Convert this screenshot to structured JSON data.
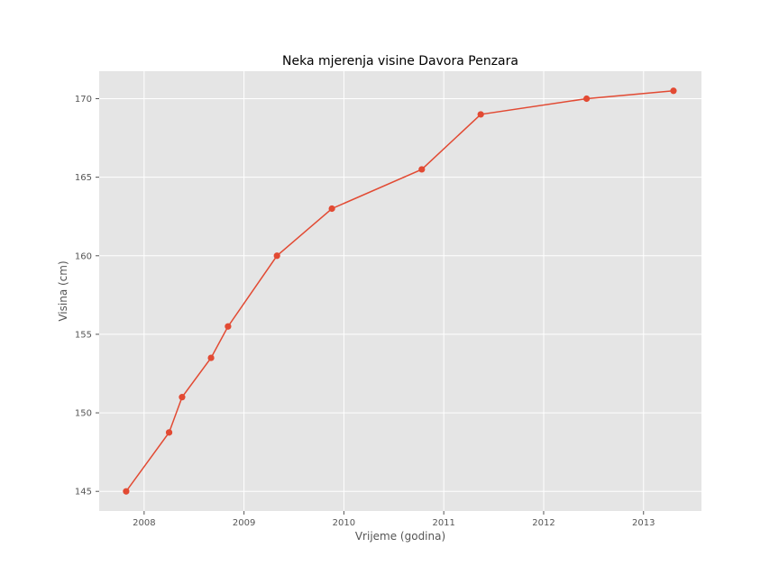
{
  "chart_data": {
    "type": "line",
    "title": "Neka mjerenja visine Davora Penzara",
    "xlabel": "Vrijeme (godina)",
    "ylabel": "Visina (cm)",
    "xlim": [
      2007.55,
      2013.58
    ],
    "ylim": [
      143.75,
      171.75
    ],
    "x_ticks": [
      2008,
      2009,
      2010,
      2011,
      2012,
      2013
    ],
    "x_tick_labels": [
      "2008",
      "2009",
      "2010",
      "2011",
      "2012",
      "2013"
    ],
    "y_ticks": [
      145,
      150,
      155,
      160,
      165,
      170
    ],
    "y_tick_labels": [
      "145",
      "150",
      "155",
      "160",
      "165",
      "170"
    ],
    "grid": true,
    "legend": "none",
    "series": [
      {
        "color": "#e24a33",
        "marker": "circle",
        "x": [
          2007.82,
          2008.25,
          2008.38,
          2008.67,
          2008.84,
          2009.33,
          2009.88,
          2010.78,
          2011.37,
          2012.43,
          2013.3
        ],
        "y": [
          145.0,
          148.75,
          151.0,
          153.5,
          155.5,
          160.0,
          163.0,
          165.5,
          169.0,
          170.0,
          170.5
        ]
      }
    ]
  }
}
